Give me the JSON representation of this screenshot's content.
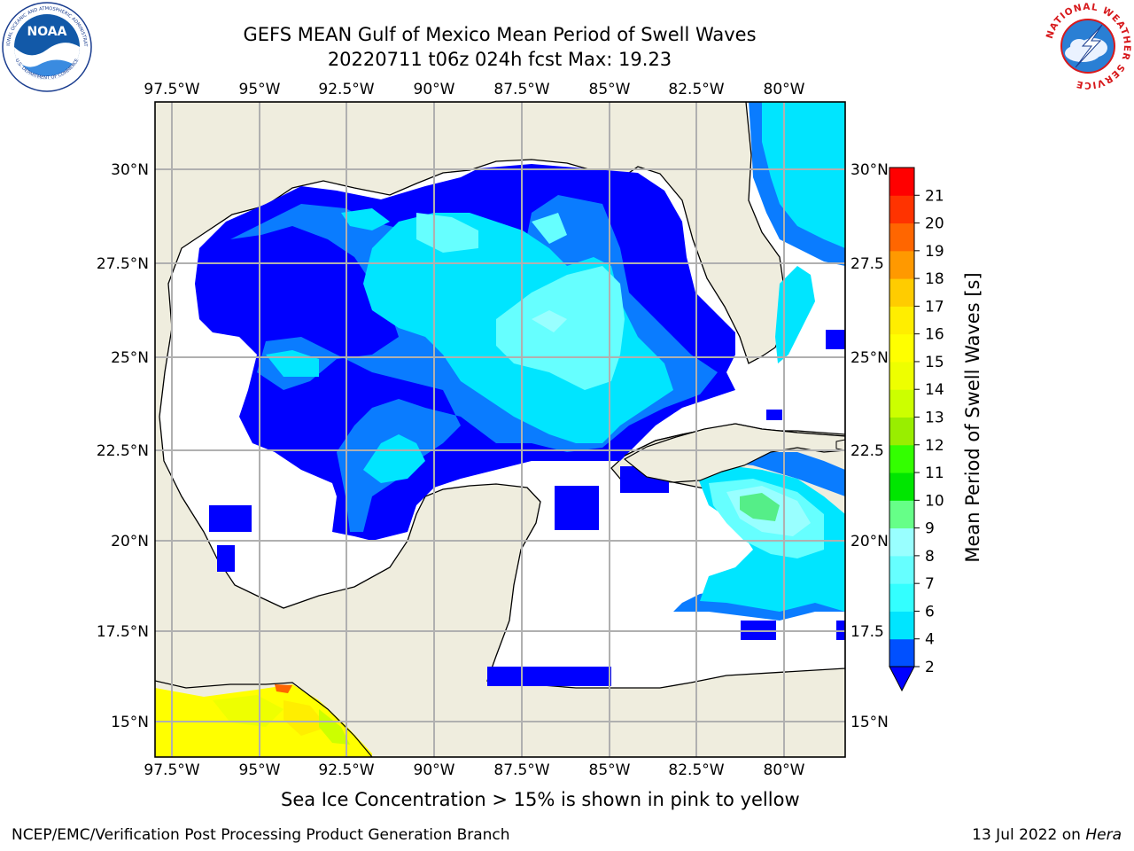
{
  "header": {
    "title_line1": "GEFS MEAN Gulf of Mexico Mean Period of Swell Waves",
    "title_line2": "20220711 t06z 024h fcst   Max: 19.23"
  },
  "logos": {
    "left": "NOAA",
    "left_ring_top": "NATIONAL OCEANIC AND ATMOSPHERIC ADMINISTRATION",
    "left_ring_bottom": "U.S. DEPARTMENT OF COMMERCE",
    "right_ring": "NATIONAL WEATHER SERVICE"
  },
  "map": {
    "lon_labels": [
      "97.5°W",
      "95°W",
      "92.5°W",
      "90°W",
      "87.5°W",
      "85°W",
      "82.5°W",
      "80°W"
    ],
    "lat_labels_left": [
      "30°N",
      "27.5°N",
      "25°N",
      "22.5°N",
      "20°N",
      "17.5°N",
      "15°N"
    ],
    "lat_labels_right": [
      "30°N",
      "27.5",
      "25°N",
      "22.5",
      "20°N",
      "17.5",
      "15°N"
    ],
    "land_color": "#efedde",
    "grid_color": "#b0b0b0"
  },
  "colorbar": {
    "label": "Mean Period of Swell Waves [s]",
    "ticks": [
      "2",
      "4",
      "6",
      "7",
      "8",
      "9",
      "10",
      "11",
      "12",
      "13",
      "14",
      "15",
      "16",
      "17",
      "18",
      "19",
      "20",
      "21"
    ],
    "colors": [
      "#0050ff",
      "#00e5ff",
      "#33ffff",
      "#66ffff",
      "#99ffff",
      "#66ff88",
      "#00e600",
      "#33ff00",
      "#99ee00",
      "#ccff00",
      "#eeff00",
      "#ffff00",
      "#ffee00",
      "#ffcc00",
      "#ff9900",
      "#ff6600",
      "#ff3300",
      "#ff0000"
    ],
    "under_color": "#0000ff"
  },
  "caption": "Sea Ice Concentration > 15% is shown in pink to yellow",
  "footer": {
    "left": "NCEP/EMC/Verification Post Processing Product Generation Branch",
    "right_date": "13 Jul 2022 on ",
    "right_host": "Hera"
  }
}
